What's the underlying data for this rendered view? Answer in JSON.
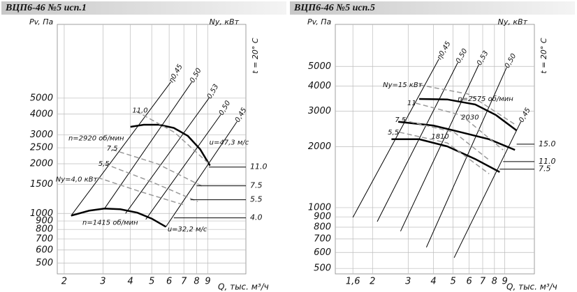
{
  "chart_data": [
    {
      "type": "line",
      "title": "ВЦП6-46 №5 исп.1",
      "y_label": "Pv, Па",
      "y2_label": "Nу, кВт",
      "x_label": "Q, тыс. м³/ч",
      "note": "t = 20° C",
      "xscale": "log",
      "yscale": "log",
      "grid": true,
      "xlim": [
        1.86,
        13.4
      ],
      "ylim": [
        430,
        14000
      ],
      "xticks": [
        2,
        3,
        4,
        5,
        6,
        7,
        8,
        9
      ],
      "yticks": [
        500,
        600,
        700,
        800,
        900,
        1000,
        1500,
        2000,
        2500,
        3000,
        4000,
        5000
      ],
      "series": [
        {
          "style": "solid",
          "color": "#000000",
          "line_width": 2.5,
          "x": [
            4.0,
            4.6,
            5.4,
            6.3,
            7.3,
            8.3,
            9.2
          ],
          "y": [
            3350,
            3450,
            3450,
            3300,
            2950,
            2450,
            1950
          ]
        },
        {
          "style": "solid",
          "color": "#000000",
          "line_width": 2.5,
          "x": [
            2.15,
            2.6,
            3.05,
            3.6,
            4.3,
            5.0,
            5.8
          ],
          "y": [
            970,
            1040,
            1070,
            1060,
            1010,
            930,
            830
          ]
        },
        {
          "style": "solid",
          "color": "#000000",
          "line_width": 1,
          "x": [
            2.15,
            6.1
          ],
          "y": [
            970,
            6250
          ]
        },
        {
          "style": "solid",
          "color": "#000000",
          "line_width": 1,
          "x": [
            3.05,
            7.6
          ],
          "y": [
            1070,
            6250
          ]
        },
        {
          "style": "solid",
          "color": "#000000",
          "line_width": 1,
          "x": [
            3.8,
            9.1
          ],
          "y": [
            1000,
            5000
          ]
        },
        {
          "style": "solid",
          "color": "#000000",
          "line_width": 1,
          "x": [
            4.7,
            10.3
          ],
          "y": [
            920,
            3970
          ]
        },
        {
          "style": "solid",
          "color": "#000000",
          "line_width": 1,
          "x": [
            5.8,
            12.2
          ],
          "y": [
            830,
            3600
          ]
        },
        {
          "style": "dashed",
          "color": "#999999",
          "line_width": 1.5,
          "x": [
            4.25,
            6.35,
            9.1
          ],
          "y": [
            4160,
            3100,
            2000
          ]
        },
        {
          "style": "dashed",
          "color": "#999999",
          "line_width": 1.5,
          "x": [
            3.3,
            5.3,
            8.5
          ],
          "y": [
            2440,
            2000,
            1460
          ]
        },
        {
          "style": "dashed",
          "color": "#999999",
          "line_width": 1.5,
          "x": [
            3.05,
            4.9,
            8.1
          ],
          "y": [
            2000,
            1570,
            1180
          ]
        },
        {
          "style": "dashed",
          "color": "#999999",
          "line_width": 1.5,
          "x": [
            2.84,
            4.4,
            7.1
          ],
          "y": [
            1650,
            1360,
            1120
          ]
        }
      ],
      "levels": [
        {
          "label": "11.0",
          "y": 1910,
          "x_from": 9.1
        },
        {
          "label": "7.5",
          "y": 1470,
          "x_from": 8.0
        },
        {
          "label": "5.5",
          "y": 1210,
          "x_from": 7.5
        },
        {
          "label": "4.0",
          "y": 940,
          "x_from": 6.3
        }
      ],
      "annotations": [
        {
          "text": "η0,45",
          "x": 6.1,
          "y": 6250,
          "angle": -60
        },
        {
          "text": "0,50",
          "x": 7.6,
          "y": 6250,
          "angle": -60
        },
        {
          "text": "0,53",
          "x": 9.1,
          "y": 5000,
          "angle": -60
        },
        {
          "text": "0,50",
          "x": 10.3,
          "y": 3970,
          "angle": -60
        },
        {
          "text": "0,45",
          "x": 12.2,
          "y": 3600,
          "angle": -60
        },
        {
          "text": "11,0",
          "x": 4.08,
          "y": 4200,
          "angle": 0
        },
        {
          "text": "7,5",
          "x": 3.12,
          "y": 2480,
          "angle": 0
        },
        {
          "text": "5,5",
          "x": 2.86,
          "y": 2000,
          "angle": 0
        },
        {
          "text": "Nу=4,0 кВт",
          "x": 1.83,
          "y": 1610,
          "angle": 0
        },
        {
          "text": "n=2920 об/мин",
          "x": 2.09,
          "y": 2850,
          "angle": 0
        },
        {
          "text": "n=1415 об/мин",
          "x": 2.42,
          "y": 880,
          "angle": 0
        },
        {
          "text": "u=47,3 м/с",
          "x": 9.14,
          "y": 2690,
          "angle": 0
        },
        {
          "text": "u=32,2 м/с",
          "x": 5.9,
          "y": 800,
          "angle": 0
        }
      ]
    },
    {
      "type": "line",
      "title": "ВЦП6-46 №5 исп.5",
      "y_label": "Pv, Па",
      "y2_label": "Nу, кВт",
      "x_label": "Q, тыс. м³/ч",
      "note": "t = 20° C",
      "xscale": "log",
      "yscale": "log",
      "grid": true,
      "xlim": [
        1.31,
        12.6
      ],
      "ylim": [
        470,
        8070
      ],
      "xticks": [
        {
          "value": 1.6,
          "label": "1,6"
        },
        2,
        3,
        4,
        5,
        6,
        7,
        8,
        9
      ],
      "yticks": [
        500,
        600,
        700,
        800,
        900,
        1000,
        2000,
        3000,
        4000,
        5000
      ],
      "series": [
        {
          "style": "solid",
          "color": "#000000",
          "line_width": 2.5,
          "x": [
            3.4,
            4.68,
            6.43,
            8.15,
            10.3
          ],
          "y": [
            3450,
            3430,
            3240,
            2870,
            2410
          ]
        },
        {
          "style": "solid",
          "color": "#000000",
          "line_width": 2.5,
          "x": [
            2.68,
            3.99,
            5.48,
            7.53,
            10.1
          ],
          "y": [
            2660,
            2550,
            2360,
            2180,
            1930
          ]
        },
        {
          "style": "solid",
          "color": "#000000",
          "line_width": 2.5,
          "x": [
            2.48,
            3.4,
            4.68,
            6.43,
            8.49
          ],
          "y": [
            2180,
            2180,
            2010,
            1740,
            1500
          ]
        },
        {
          "style": "solid",
          "color": "#000000",
          "line_width": 1,
          "x": [
            1.6,
            4.25
          ],
          "y": [
            895,
            5430
          ]
        },
        {
          "style": "solid",
          "color": "#000000",
          "line_width": 1,
          "x": [
            2.11,
            5.27
          ],
          "y": [
            853,
            5220
          ]
        },
        {
          "style": "solid",
          "color": "#000000",
          "line_width": 1,
          "x": [
            2.75,
            6.69
          ],
          "y": [
            764,
            5090
          ]
        },
        {
          "style": "solid",
          "color": "#000000",
          "line_width": 1,
          "x": [
            3.69,
            9.18
          ],
          "y": [
            636,
            4930
          ]
        },
        {
          "style": "solid",
          "color": "#000000",
          "line_width": 1,
          "x": [
            5.06,
            10.8
          ],
          "y": [
            565,
            2660
          ]
        },
        {
          "style": "dashed",
          "color": "#999999",
          "line_width": 1.5,
          "x": [
            3.4,
            5.93,
            10.3
          ],
          "y": [
            4050,
            3650,
            2550
          ]
        },
        {
          "style": "dashed",
          "color": "#999999",
          "line_width": 1.5,
          "x": [
            3.27,
            5.48,
            8.83
          ],
          "y": [
            3290,
            2870,
            1930
          ]
        },
        {
          "style": "dashed",
          "color": "#999999",
          "line_width": 1.5,
          "x": [
            2.79,
            5.06,
            7.53
          ],
          "y": [
            2720,
            2360,
            1720
          ]
        },
        {
          "style": "dashed",
          "color": "#999999",
          "line_width": 1.5,
          "x": [
            2.72,
            4.68,
            7.53
          ],
          "y": [
            2360,
            2090,
            1470
          ]
        }
      ],
      "levels": [
        {
          "label": "15.0",
          "y": 2060,
          "x_from": 10.3
        },
        {
          "label": "11.0",
          "y": 1690,
          "x_from": 8.83
        },
        {
          "label": "7.5",
          "y": 1550,
          "x_from": 8.49
        }
      ],
      "annotations": [
        {
          "text": "η0,45",
          "x": 4.25,
          "y": 5430,
          "angle": -60
        },
        {
          "text": "0,50",
          "x": 5.27,
          "y": 5220,
          "angle": -60
        },
        {
          "text": "0,53",
          "x": 6.69,
          "y": 5090,
          "angle": -60
        },
        {
          "text": "0,50",
          "x": 9.18,
          "y": 4930,
          "angle": -60
        },
        {
          "text": "0,45",
          "x": 10.8,
          "y": 2660,
          "angle": -60
        },
        {
          "text": "Nу=15 кВт",
          "x": 2.25,
          "y": 4050,
          "angle": 0
        },
        {
          "text": "11",
          "x": 2.97,
          "y": 3290,
          "angle": 0
        },
        {
          "text": "7,5",
          "x": 2.58,
          "y": 2720,
          "angle": 0
        },
        {
          "text": "5,5",
          "x": 2.38,
          "y": 2360,
          "angle": 0
        },
        {
          "text": "n=2575 об/мин",
          "x": 5.27,
          "y": 3450,
          "angle": 0
        },
        {
          "text": "2030",
          "x": 5.48,
          "y": 2800,
          "angle": 0
        },
        {
          "text": "1810",
          "x": 3.9,
          "y": 2250,
          "angle": 0
        }
      ]
    }
  ]
}
